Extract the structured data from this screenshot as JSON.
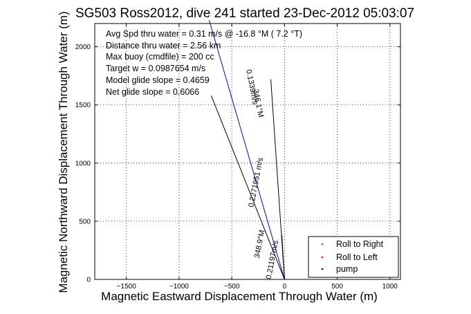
{
  "chart_data": {
    "type": "line",
    "title": "SG503 Ross2012, dive 241 started 23-Dec-2012 05:03:07",
    "xlabel": "Magnetic Eastward Displacement Through Water (m)",
    "ylabel": "Magnetic Northward Displacement Through Water (m)",
    "xlim": [
      -1800,
      1100
    ],
    "ylim": [
      0,
      2200
    ],
    "xticks": [
      -1500,
      -1000,
      -500,
      0,
      500,
      1000
    ],
    "yticks": [
      0,
      500,
      1000,
      1500,
      2000
    ],
    "grid": true,
    "legend_position": "bottom-right",
    "info_lines": [
      "Avg Spd thru water = 0.31 m/s @ -16.8   °M (  7.2 °T)",
      "Distance thru water = 2.56 km",
      "Max buoy (cmdfile) = 200 cc",
      "Target w = 0.0987654 m/s",
      "Model glide slope = 0.4659",
      "Net glide slope = 0.6066"
    ],
    "legend": [
      {
        "label": "Roll to Right",
        "color": "#00aa00"
      },
      {
        "label": "Roll to Left",
        "color": "#dd0000"
      },
      {
        "label": "pump",
        "color": "#000000"
      }
    ],
    "series": [
      {
        "color": "#0000cc",
        "x": [
          0,
          -715
        ],
        "y": [
          0,
          2230
        ]
      },
      {
        "color": "#000000",
        "x": [
          0,
          -695
        ],
        "y": [
          0,
          1580
        ]
      },
      {
        "color": "#000000",
        "x": [
          0,
          -130
        ],
        "y": [
          0,
          1720
        ]
      },
      {
        "color": "#000000",
        "x": [
          0,
          -25
        ],
        "y": [
          0,
          380
        ]
      }
    ],
    "annotations": [
      {
        "text": "0.21197m/s",
        "x": -95,
        "y": 165,
        "angle": -79
      },
      {
        "text": "348.9°M",
        "x": -215,
        "y": 300,
        "angle": -79
      },
      {
        "text": "0.2271951 m/s",
        "x": -250,
        "y": 830,
        "angle": -79
      },
      {
        "text": "346.1°M",
        "x": -270,
        "y": 1510,
        "angle": 79
      },
      {
        "text": "0.1339m/s",
        "x": -330,
        "y": 1650,
        "angle": 79
      }
    ]
  }
}
